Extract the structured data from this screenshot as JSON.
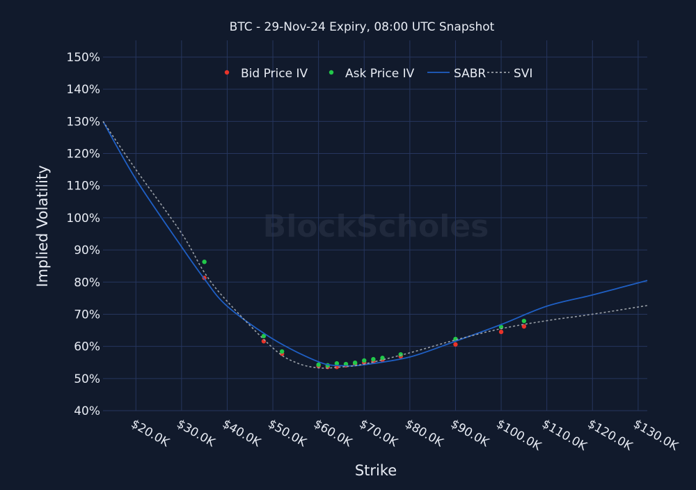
{
  "chart_data": {
    "type": "scatter",
    "title": "BTC - 29-Nov-24 Expiry, 08:00 UTC Snapshot",
    "xlabel": "Strike",
    "ylabel": "Implied Volatility",
    "watermark": "BlockScholes",
    "xlim": [
      12.8,
      132
    ],
    "ylim": [
      40,
      150
    ],
    "x_ticks": [
      20,
      30,
      40,
      50,
      60,
      70,
      80,
      90,
      100,
      110,
      120,
      130
    ],
    "x_tick_labels": [
      "$20.0K",
      "$30.0K",
      "$40.0K",
      "$50.0K",
      "$60.0K",
      "$70.0K",
      "$80.0K",
      "$90.0K",
      "$100.0K",
      "$110.0K",
      "$120.0K",
      "$130.0K"
    ],
    "y_ticks": [
      40,
      50,
      60,
      70,
      80,
      90,
      100,
      110,
      120,
      130,
      140,
      150
    ],
    "y_tick_labels": [
      "40%",
      "50%",
      "60%",
      "70%",
      "80%",
      "90%",
      "100%",
      "110%",
      "120%",
      "130%",
      "140%",
      "150%"
    ],
    "grid": true,
    "legend_placement": "top-center",
    "series": [
      {
        "name": "Bid Price IV",
        "kind": "markers",
        "color": "#e8342a",
        "x": [
          35,
          48,
          52,
          60,
          62,
          64,
          66,
          68,
          70,
          72,
          74,
          78,
          90,
          100,
          105
        ],
        "y": [
          81.3,
          61.6,
          57.7,
          53.9,
          53.6,
          53.6,
          54.1,
          54.5,
          54.9,
          55.2,
          55.8,
          56.9,
          60.6,
          64.5,
          66.2
        ]
      },
      {
        "name": "Ask Price IV",
        "kind": "markers",
        "color": "#22c84a",
        "x": [
          35,
          48,
          52,
          60,
          62,
          64,
          66,
          68,
          70,
          72,
          74,
          78,
          90,
          100,
          105
        ],
        "y": [
          86.3,
          63.2,
          58.4,
          54.3,
          54.1,
          54.7,
          54.5,
          54.9,
          55.6,
          56.0,
          56.4,
          57.5,
          62.3,
          66.0,
          67.9
        ]
      },
      {
        "name": "SABR",
        "kind": "line",
        "color": "#1f5fc4",
        "x": [
          12.8,
          20,
          30,
          35,
          40,
          50,
          60,
          65,
          70,
          80,
          90,
          100,
          110,
          120,
          132
        ],
        "y": [
          130,
          112,
          91,
          81,
          72.5,
          62.3,
          55.2,
          54,
          54.3,
          56.7,
          61.6,
          66.8,
          72.5,
          76,
          80.5
        ]
      },
      {
        "name": "SVI",
        "kind": "dotted",
        "color": "#9aa0a8",
        "x": [
          12.8,
          20,
          30,
          35,
          40,
          50,
          55,
          60,
          65,
          70,
          80,
          90,
          100,
          110,
          120,
          132
        ],
        "y": [
          130,
          115,
          95.2,
          83,
          74,
          59.5,
          55,
          53.3,
          53.6,
          54.5,
          58,
          62,
          65.5,
          68,
          70,
          72.7
        ]
      }
    ]
  }
}
